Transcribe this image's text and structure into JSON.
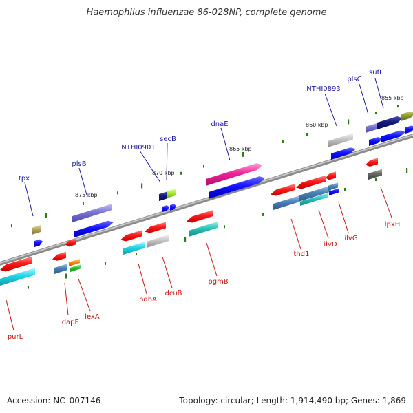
{
  "title": "Haemophilus influenzae 86-028NP, complete genome",
  "footer": {
    "accession": "Accession: NC_007146",
    "summary": "Topology: circular; Length: 1,914,490 bp; Genes: 1,869"
  },
  "colors": {
    "backbone": "#808080",
    "tick": "#2e7d12",
    "forward_label": "#1a1aa6",
    "reverse_label": "#cc1111"
  },
  "scale": [
    "855 kbp",
    "860 kbp",
    "865 kbp",
    "870 kbp",
    "875 kbp"
  ],
  "genes_top": [
    "sufI",
    "plsC",
    "NTHI0893",
    "dnaE",
    "secB",
    "NTHI0901",
    "plsB",
    "tpx"
  ],
  "genes_bottom": [
    "lpxH",
    "ilvG",
    "ilvD",
    "thd1",
    "pgmB",
    "dcuB",
    "ndhA",
    "lexA",
    "dapF",
    "purL"
  ]
}
